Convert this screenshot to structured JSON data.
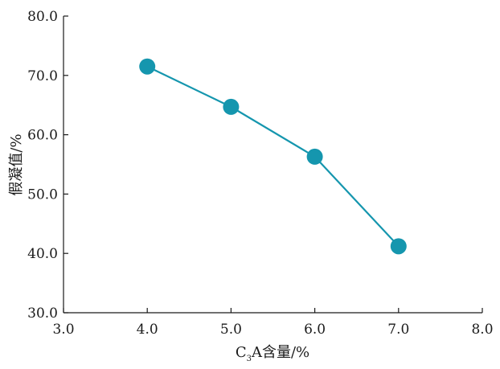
{
  "chart_data": {
    "type": "line",
    "title": "",
    "xlabel": "C3A含量/%",
    "xlabel_parts": [
      "C",
      "3",
      "A含量/%"
    ],
    "ylabel": "假凝值/%",
    "xlim": [
      3.0,
      8.0
    ],
    "ylim": [
      30.0,
      80.0
    ],
    "xticks": [
      "3.0",
      "4.0",
      "5.0",
      "6.0",
      "7.0",
      "8.0"
    ],
    "yticks": [
      "30.0",
      "40.0",
      "50.0",
      "60.0",
      "70.0",
      "80.0"
    ],
    "grid": false,
    "legend": "none",
    "series": [
      {
        "x": [
          4.0,
          5.0,
          6.0,
          7.0
        ],
        "y": [
          71.5,
          64.7,
          56.3,
          41.2
        ],
        "color": "#1596ae",
        "marker": "circle"
      }
    ]
  }
}
